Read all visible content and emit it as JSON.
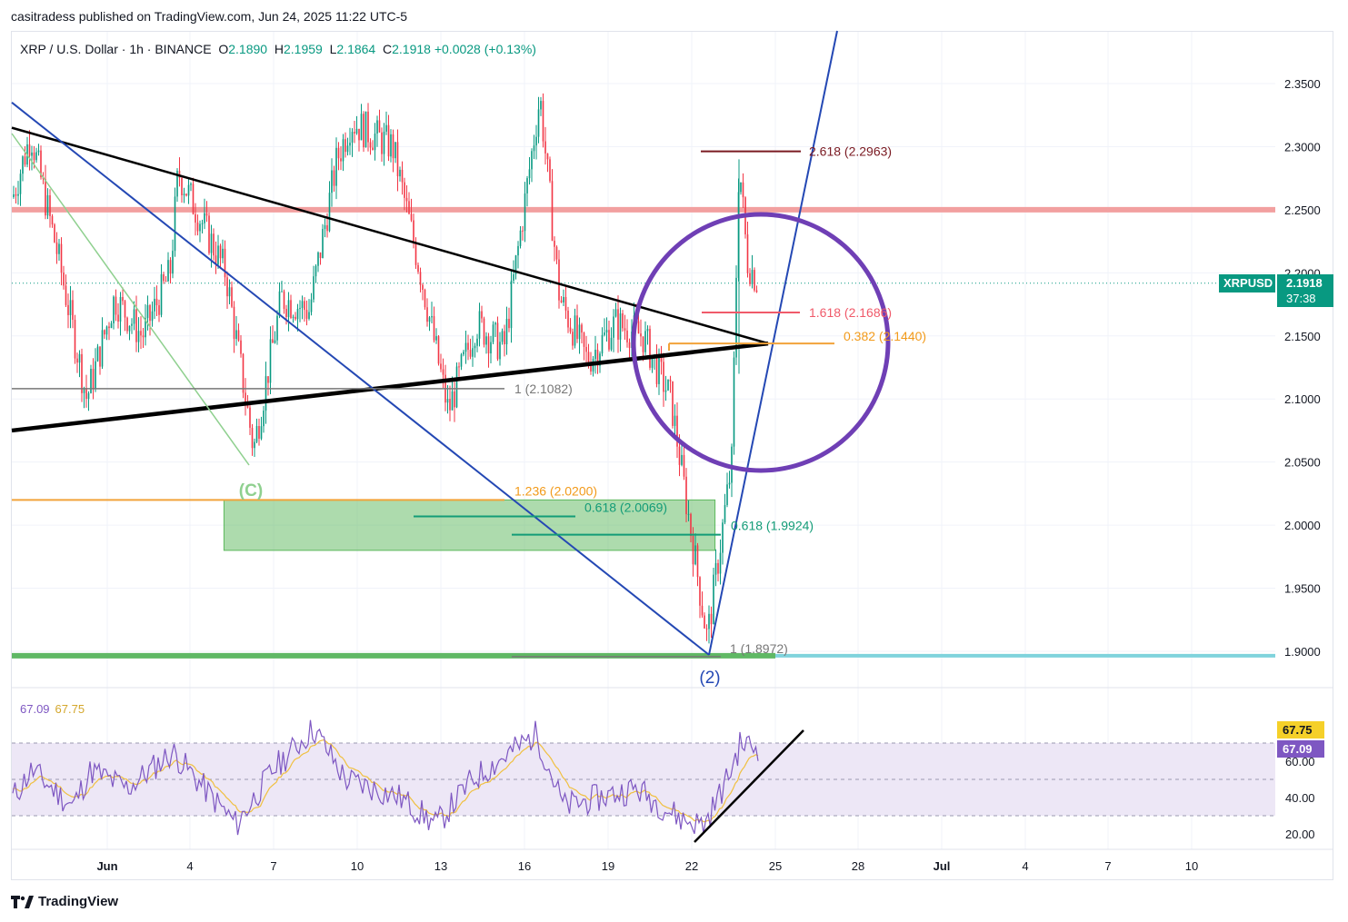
{
  "publisher": "casitradess published on TradingView.com, Jun 24, 2025 11:22 UTC-5",
  "header": {
    "symbol": "XRP / U.S. Dollar · 1h · BINANCE",
    "o_label": "O",
    "o_value": "2.1890",
    "h_label": "H",
    "h_value": "2.1959",
    "l_label": "L",
    "l_value": "2.1864",
    "c_label": "C",
    "c_value": "2.1918",
    "change": "+0.0028 (+0.13%)"
  },
  "price_badge": {
    "ticker": "XRPUSD",
    "price": "2.1918",
    "countdown": "37:38"
  },
  "rsi": {
    "value1": "67.09",
    "value2": "67.75",
    "badge1": "67.75",
    "badge2": "67.09"
  },
  "footer": {
    "logo_icon": "tradingview-logo-icon",
    "brand": "TradingView"
  },
  "colors": {
    "up": "#089981",
    "down": "#f23645",
    "wedge": "#000000",
    "blue_line": "#2448b4",
    "circle": "#6f3fb5",
    "resistance": "#f2a0a0",
    "support": "#5fb865",
    "support_ext": "#7fd3dc",
    "rsi_line": "#7e57c2",
    "rsi_ma": "#f0c040",
    "rsi_band": "#ede7f6"
  },
  "chart_data": {
    "type": "candlestick",
    "symbol": "XRP / U.S. Dollar",
    "interval": "1h",
    "exchange": "BINANCE",
    "price_axis": {
      "ticks": [
        "2.3500",
        "2.3000",
        "2.2500",
        "2.2000",
        "2.1500",
        "2.1000",
        "2.0500",
        "2.0000",
        "1.9500",
        "1.9000"
      ],
      "range": [
        1.885,
        2.375
      ]
    },
    "time_axis": {
      "ticks": [
        "Jun",
        "4",
        "7",
        "10",
        "13",
        "16",
        "19",
        "22",
        "25",
        "28",
        "Jul",
        "4",
        "7",
        "10"
      ]
    },
    "last_price": 2.1918,
    "price_path": [
      {
        "date": "May 29",
        "price": 2.26
      },
      {
        "date": "May 29",
        "price": 2.31
      },
      {
        "date": "May 30",
        "price": 2.21
      },
      {
        "date": "May 31",
        "price": 2.1
      },
      {
        "date": "Jun 1",
        "price": 2.18
      },
      {
        "date": "Jun 2",
        "price": 2.15
      },
      {
        "date": "Jun 3",
        "price": 2.2
      },
      {
        "date": "Jun 4",
        "price": 2.28
      },
      {
        "date": "Jun 5",
        "price": 2.2
      },
      {
        "date": "Jun 6",
        "price": 2.06
      },
      {
        "date": "Jun 7",
        "price": 2.18
      },
      {
        "date": "Jun 8",
        "price": 2.17
      },
      {
        "date": "Jun 9",
        "price": 2.29
      },
      {
        "date": "Jun 10",
        "price": 2.32
      },
      {
        "date": "Jun 11",
        "price": 2.3
      },
      {
        "date": "Jun 12",
        "price": 2.2
      },
      {
        "date": "Jun 13",
        "price": 2.09
      },
      {
        "date": "Jun 14",
        "price": 2.16
      },
      {
        "date": "Jun 15",
        "price": 2.14
      },
      {
        "date": "Jun 16",
        "price": 2.34
      },
      {
        "date": "Jun 17",
        "price": 2.18
      },
      {
        "date": "Jun 18",
        "price": 2.13
      },
      {
        "date": "Jun 19",
        "price": 2.16
      },
      {
        "date": "Jun 20",
        "price": 2.15
      },
      {
        "date": "Jun 21",
        "price": 2.1
      },
      {
        "date": "Jun 22",
        "price": 1.91
      },
      {
        "date": "Jun 23",
        "price": 2.05
      },
      {
        "date": "Jun 23",
        "price": 2.29
      },
      {
        "date": "Jun 24",
        "price": 2.21
      },
      {
        "date": "Jun 24",
        "price": 2.1918
      }
    ],
    "horizontal_levels": [
      {
        "price": 2.25,
        "kind": "resistance"
      },
      {
        "price": 1.8972,
        "kind": "support"
      }
    ],
    "zones": [
      {
        "from_date": "Jun 5",
        "to_date": "Jun 22",
        "price_top": 2.02,
        "price_bottom": 1.98,
        "label": "(C)"
      }
    ],
    "fib_labels": [
      {
        "text": "2.618 (2.2963)",
        "price": 2.2963
      },
      {
        "text": "1.618 (2.1686)",
        "price": 2.1686
      },
      {
        "text": "0.382 (2.1440)",
        "price": 2.144
      },
      {
        "text": "1 (2.1082)",
        "price": 2.1082
      },
      {
        "text": "1.236 (2.0200)",
        "price": 2.02
      },
      {
        "text": "0.618 (2.0069)",
        "price": 2.0069
      },
      {
        "text": "0.618 (1.9924)",
        "price": 1.9924
      },
      {
        "text": "1 (1.8972)",
        "price": 1.8972
      }
    ],
    "wave_labels": [
      "(C)",
      "(2)"
    ],
    "trendlines": [
      {
        "name": "upper-wedge",
        "from": {
          "date": "May 29",
          "price": 2.315
        },
        "to": {
          "date": "Jun 24",
          "price": 2.144
        }
      },
      {
        "name": "lower-wedge",
        "from": {
          "date": "May 29",
          "price": 2.075
        },
        "to": {
          "date": "Jun 24",
          "price": 2.144
        }
      },
      {
        "name": "blue-descending",
        "from": {
          "date": "May 29",
          "price": 2.335
        },
        "to": {
          "date": "Jun 22",
          "price": 1.8972
        }
      },
      {
        "name": "blue-ascending",
        "from": {
          "date": "Jun 22",
          "price": 1.8972
        },
        "to": {
          "date": "Jun 26",
          "price": 2.39
        }
      }
    ],
    "rsi": {
      "axis_ticks": [
        "60.00",
        "40.00",
        "20.00"
      ],
      "levels": [
        70,
        30
      ],
      "last": 67.09,
      "ma_last": 67.75
    }
  }
}
